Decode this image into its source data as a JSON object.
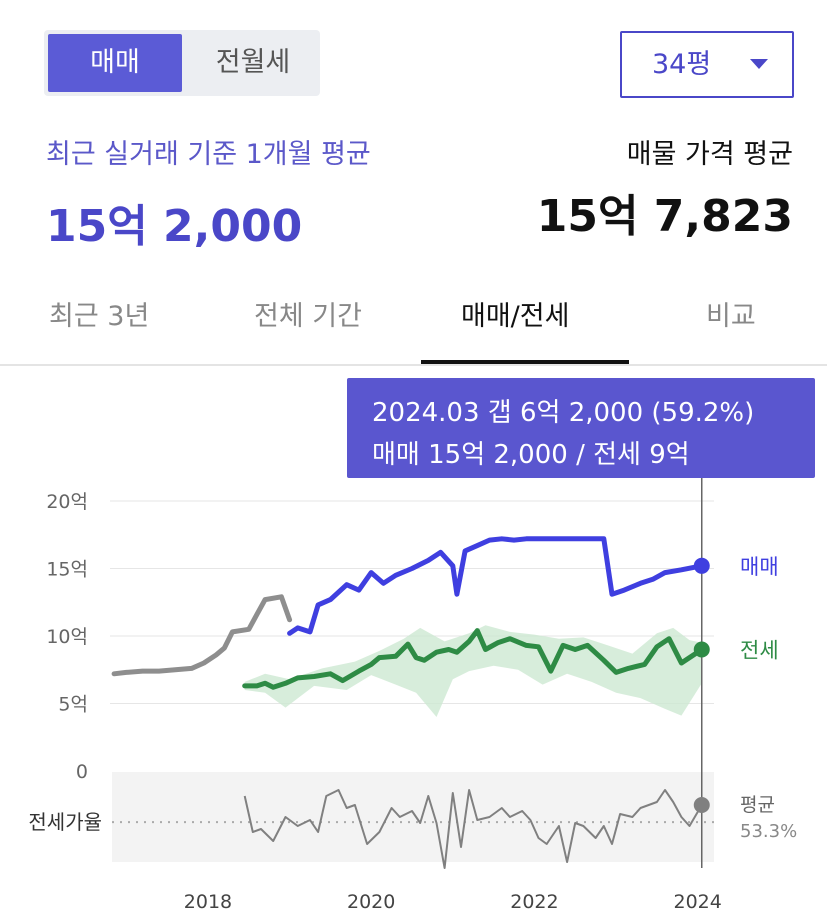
{
  "deal_toggle": {
    "sale_label": "매매",
    "rent_label": "전월세"
  },
  "area_select": {
    "value": "34평"
  },
  "summary": {
    "recent_label": "최근 실거래 기준 1개월 평균",
    "recent_value": "15억 2,000",
    "listing_label": "매물 가격 평균",
    "listing_value": "15억 7,823"
  },
  "tabs": [
    {
      "label": "최근 3년",
      "active": false
    },
    {
      "label": "전체 기간",
      "active": false
    },
    {
      "label": "매매/전세",
      "active": true
    },
    {
      "label": "비교",
      "active": false
    }
  ],
  "tooltip": {
    "line1": "2024.03  갭 6억 2,000 (59.2%)",
    "line2": "매매 15억 2,000 / 전세 9억"
  },
  "colors": {
    "accent": "#4a47c8",
    "sale": "#3f3fe0",
    "sale_past": "#8e8e8e",
    "jeonse": "#2e8b45",
    "jeonse_band": "#cde8d2",
    "ratio": "#808080",
    "tooltip_bg": "#5a56cf"
  },
  "chart_data": {
    "type": "line",
    "y_unit": "억",
    "ylim": [
      0,
      20
    ],
    "y_ticks": [
      {
        "value": 20,
        "label": "20억"
      },
      {
        "value": 15,
        "label": "15억"
      },
      {
        "value": 10,
        "label": "10억"
      },
      {
        "value": 5,
        "label": "5억"
      },
      {
        "value": 0,
        "label": "0"
      }
    ],
    "xlim": [
      2016.8,
      2024.2
    ],
    "x_ticks": [
      "2018",
      "2020",
      "2022",
      "2024"
    ],
    "grid": "horizontal",
    "series": [
      {
        "name": "",
        "key": "sale_past",
        "points": [
          [
            2016.85,
            7.2
          ],
          [
            2017.0,
            7.3
          ],
          [
            2017.2,
            7.4
          ],
          [
            2017.4,
            7.4
          ],
          [
            2017.6,
            7.5
          ],
          [
            2017.8,
            7.6
          ],
          [
            2017.95,
            8.0
          ],
          [
            2018.1,
            8.6
          ],
          [
            2018.2,
            9.1
          ],
          [
            2018.3,
            10.3
          ],
          [
            2018.5,
            10.5
          ],
          [
            2018.6,
            11.6
          ],
          [
            2018.7,
            12.7
          ],
          [
            2018.9,
            12.9
          ],
          [
            2019.0,
            11.2
          ]
        ]
      },
      {
        "name": "매매",
        "key": "sale",
        "label": "매매",
        "points": [
          [
            2019.0,
            10.2
          ],
          [
            2019.1,
            10.6
          ],
          [
            2019.25,
            10.3
          ],
          [
            2019.35,
            12.3
          ],
          [
            2019.5,
            12.7
          ],
          [
            2019.7,
            13.8
          ],
          [
            2019.85,
            13.4
          ],
          [
            2020.0,
            14.7
          ],
          [
            2020.15,
            13.9
          ],
          [
            2020.3,
            14.5
          ],
          [
            2020.5,
            15.0
          ],
          [
            2020.7,
            15.6
          ],
          [
            2020.85,
            16.2
          ],
          [
            2021.0,
            15.2
          ],
          [
            2021.05,
            13.1
          ],
          [
            2021.15,
            16.3
          ],
          [
            2021.3,
            16.7
          ],
          [
            2021.45,
            17.1
          ],
          [
            2021.6,
            17.2
          ],
          [
            2021.75,
            17.1
          ],
          [
            2021.9,
            17.2
          ],
          [
            2022.1,
            17.2
          ],
          [
            2022.5,
            17.2
          ],
          [
            2022.85,
            17.2
          ],
          [
            2022.95,
            13.1
          ],
          [
            2023.1,
            13.4
          ],
          [
            2023.3,
            13.9
          ],
          [
            2023.45,
            14.2
          ],
          [
            2023.6,
            14.7
          ],
          [
            2023.8,
            14.9
          ],
          [
            2024.05,
            15.2
          ]
        ],
        "end_marker": true
      },
      {
        "name": "전세",
        "key": "jeonse",
        "label": "전세",
        "points": [
          [
            2018.45,
            6.3
          ],
          [
            2018.6,
            6.3
          ],
          [
            2018.7,
            6.5
          ],
          [
            2018.8,
            6.2
          ],
          [
            2018.95,
            6.5
          ],
          [
            2019.1,
            6.9
          ],
          [
            2019.3,
            7.0
          ],
          [
            2019.5,
            7.2
          ],
          [
            2019.65,
            6.7
          ],
          [
            2019.85,
            7.4
          ],
          [
            2020.0,
            7.9
          ],
          [
            2020.1,
            8.4
          ],
          [
            2020.3,
            8.5
          ],
          [
            2020.45,
            9.4
          ],
          [
            2020.55,
            8.4
          ],
          [
            2020.65,
            8.2
          ],
          [
            2020.8,
            8.8
          ],
          [
            2020.95,
            9.0
          ],
          [
            2021.05,
            8.8
          ],
          [
            2021.2,
            9.6
          ],
          [
            2021.3,
            10.4
          ],
          [
            2021.4,
            9.0
          ],
          [
            2021.55,
            9.5
          ],
          [
            2021.7,
            9.8
          ],
          [
            2021.9,
            9.3
          ],
          [
            2022.05,
            9.2
          ],
          [
            2022.2,
            7.4
          ],
          [
            2022.35,
            9.3
          ],
          [
            2022.5,
            9.0
          ],
          [
            2022.65,
            9.3
          ],
          [
            2022.85,
            8.2
          ],
          [
            2023.0,
            7.3
          ],
          [
            2023.15,
            7.6
          ],
          [
            2023.35,
            7.9
          ],
          [
            2023.5,
            9.2
          ],
          [
            2023.65,
            9.8
          ],
          [
            2023.8,
            8.0
          ],
          [
            2024.05,
            9.0
          ]
        ],
        "band": {
          "upper": [
            [
              2018.45,
              6.6
            ],
            [
              2018.7,
              7.2
            ],
            [
              2019.0,
              6.8
            ],
            [
              2019.4,
              7.6
            ],
            [
              2019.8,
              8.1
            ],
            [
              2020.1,
              8.9
            ],
            [
              2020.4,
              9.8
            ],
            [
              2020.6,
              10.6
            ],
            [
              2020.9,
              9.6
            ],
            [
              2021.2,
              10.2
            ],
            [
              2021.4,
              10.8
            ],
            [
              2021.7,
              10.3
            ],
            [
              2022.0,
              10.1
            ],
            [
              2022.3,
              9.8
            ],
            [
              2022.6,
              9.9
            ],
            [
              2022.9,
              9.3
            ],
            [
              2023.2,
              8.7
            ],
            [
              2023.5,
              10.2
            ],
            [
              2023.7,
              10.6
            ],
            [
              2023.9,
              9.7
            ],
            [
              2024.05,
              9.5
            ]
          ],
          "lower": [
            [
              2018.45,
              6.0
            ],
            [
              2018.7,
              5.8
            ],
            [
              2018.95,
              4.7
            ],
            [
              2019.3,
              6.3
            ],
            [
              2019.7,
              6.0
            ],
            [
              2020.0,
              7.1
            ],
            [
              2020.3,
              6.4
            ],
            [
              2020.55,
              5.8
            ],
            [
              2020.8,
              4.0
            ],
            [
              2021.0,
              6.8
            ],
            [
              2021.2,
              7.4
            ],
            [
              2021.5,
              7.8
            ],
            [
              2021.8,
              7.5
            ],
            [
              2022.1,
              6.4
            ],
            [
              2022.4,
              7.2
            ],
            [
              2022.7,
              6.6
            ],
            [
              2023.0,
              5.8
            ],
            [
              2023.3,
              5.4
            ],
            [
              2023.6,
              4.6
            ],
            [
              2023.8,
              4.1
            ],
            [
              2024.05,
              6.5
            ]
          ]
        },
        "end_marker": true
      }
    ],
    "ratio_panel": {
      "label": "전세가율",
      "avg_label": "평균",
      "avg_value": "53.3%",
      "average": 53.3,
      "ylim": [
        40,
        70
      ],
      "points": [
        [
          2018.45,
          62
        ],
        [
          2018.55,
          50
        ],
        [
          2018.65,
          51
        ],
        [
          2018.8,
          47
        ],
        [
          2018.95,
          55
        ],
        [
          2019.1,
          52
        ],
        [
          2019.25,
          54
        ],
        [
          2019.35,
          50
        ],
        [
          2019.45,
          62
        ],
        [
          2019.6,
          64
        ],
        [
          2019.7,
          58
        ],
        [
          2019.8,
          59
        ],
        [
          2019.95,
          46
        ],
        [
          2020.1,
          50
        ],
        [
          2020.25,
          58
        ],
        [
          2020.35,
          55
        ],
        [
          2020.5,
          57
        ],
        [
          2020.6,
          53
        ],
        [
          2020.7,
          62
        ],
        [
          2020.8,
          53
        ],
        [
          2020.9,
          38
        ],
        [
          2021.0,
          63
        ],
        [
          2021.1,
          45
        ],
        [
          2021.2,
          64
        ],
        [
          2021.3,
          54
        ],
        [
          2021.45,
          55
        ],
        [
          2021.6,
          58
        ],
        [
          2021.7,
          55
        ],
        [
          2021.85,
          57
        ],
        [
          2021.95,
          54
        ],
        [
          2022.05,
          48
        ],
        [
          2022.15,
          46
        ],
        [
          2022.3,
          52
        ],
        [
          2022.4,
          40
        ],
        [
          2022.5,
          53
        ],
        [
          2022.6,
          52
        ],
        [
          2022.75,
          48
        ],
        [
          2022.85,
          52
        ],
        [
          2022.95,
          46
        ],
        [
          2023.05,
          56
        ],
        [
          2023.2,
          55
        ],
        [
          2023.3,
          58
        ],
        [
          2023.5,
          60
        ],
        [
          2023.6,
          64
        ],
        [
          2023.7,
          60
        ],
        [
          2023.8,
          55
        ],
        [
          2023.9,
          52
        ],
        [
          2024.05,
          59
        ]
      ]
    },
    "highlight": {
      "x": 2024.05,
      "label": "2024.03"
    }
  }
}
